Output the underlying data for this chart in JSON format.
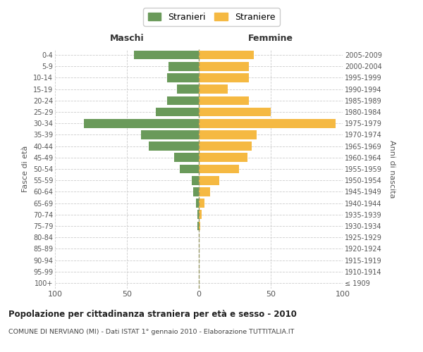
{
  "age_groups": [
    "100+",
    "95-99",
    "90-94",
    "85-89",
    "80-84",
    "75-79",
    "70-74",
    "65-69",
    "60-64",
    "55-59",
    "50-54",
    "45-49",
    "40-44",
    "35-39",
    "30-34",
    "25-29",
    "20-24",
    "15-19",
    "10-14",
    "5-9",
    "0-4"
  ],
  "birth_years": [
    "≤ 1909",
    "1910-1914",
    "1915-1919",
    "1920-1924",
    "1925-1929",
    "1930-1934",
    "1935-1939",
    "1940-1944",
    "1945-1949",
    "1950-1954",
    "1955-1959",
    "1960-1964",
    "1965-1969",
    "1970-1974",
    "1975-1979",
    "1980-1984",
    "1985-1989",
    "1990-1994",
    "1995-1999",
    "2000-2004",
    "2005-2009"
  ],
  "maschi": [
    0,
    0,
    0,
    0,
    0,
    1,
    1,
    2,
    4,
    5,
    13,
    17,
    35,
    40,
    80,
    30,
    22,
    15,
    22,
    21,
    45
  ],
  "femmine": [
    0,
    0,
    0,
    0,
    0,
    1,
    2,
    4,
    8,
    14,
    28,
    34,
    37,
    40,
    95,
    50,
    35,
    20,
    35,
    35,
    38
  ],
  "maschi_color": "#6a9a5a",
  "femmine_color": "#f5b942",
  "background_color": "#ffffff",
  "grid_color": "#cccccc",
  "title": "Popolazione per cittadinanza straniera per età e sesso - 2010",
  "subtitle": "COMUNE DI NERVIANO (MI) - Dati ISTAT 1° gennaio 2010 - Elaborazione TUTTITALIA.IT",
  "xlabel_maschi": "Maschi",
  "xlabel_femmine": "Femmine",
  "ylabel_left": "Fasce di età",
  "ylabel_right": "Anni di nascita",
  "legend_maschi": "Stranieri",
  "legend_femmine": "Straniere",
  "xlim": 100,
  "xticks": [
    -100,
    -50,
    0,
    50,
    100
  ],
  "xticklabels": [
    "100",
    "50",
    "0",
    "50",
    "100"
  ]
}
